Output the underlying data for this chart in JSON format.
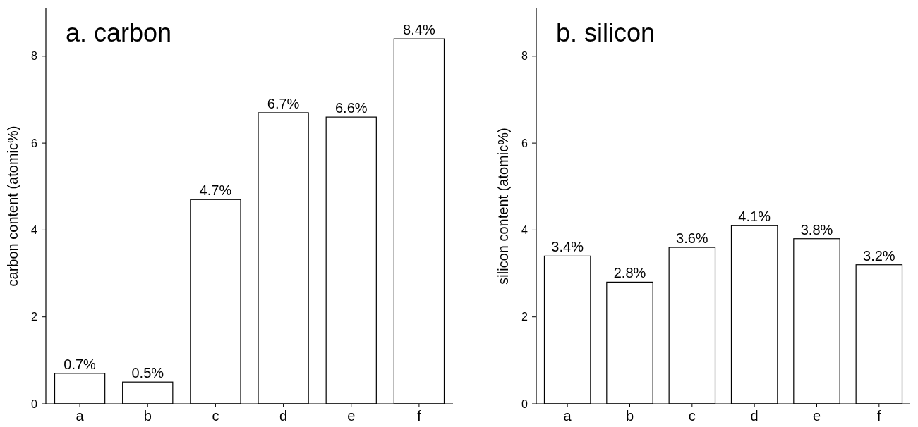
{
  "chart_data": [
    {
      "type": "bar",
      "title": "a. carbon",
      "ylabel": "carbon content (atomic%)",
      "categories": [
        "a",
        "b",
        "c",
        "d",
        "e",
        "f"
      ],
      "values": [
        0.7,
        0.5,
        4.7,
        6.7,
        6.6,
        8.4
      ],
      "value_labels": [
        "0.7%",
        "0.5%",
        "4.7%",
        "6.7%",
        "6.6%",
        "8.4%"
      ],
      "color": "#ffffff",
      "ylim": [
        0,
        9.1
      ],
      "yticks": [
        0,
        2,
        4,
        6,
        8
      ]
    },
    {
      "type": "bar",
      "title": "b. silicon",
      "ylabel": "silicon content (atomic%)",
      "categories": [
        "a",
        "b",
        "c",
        "d",
        "e",
        "f"
      ],
      "values": [
        3.4,
        2.8,
        3.6,
        4.1,
        3.8,
        3.2
      ],
      "value_labels": [
        "3.4%",
        "2.8%",
        "3.6%",
        "4.1%",
        "3.8%",
        "3.2%"
      ],
      "color": "#ffffff",
      "ylim": [
        0,
        9.1
      ],
      "yticks": [
        0,
        2,
        4,
        6,
        8
      ]
    }
  ]
}
